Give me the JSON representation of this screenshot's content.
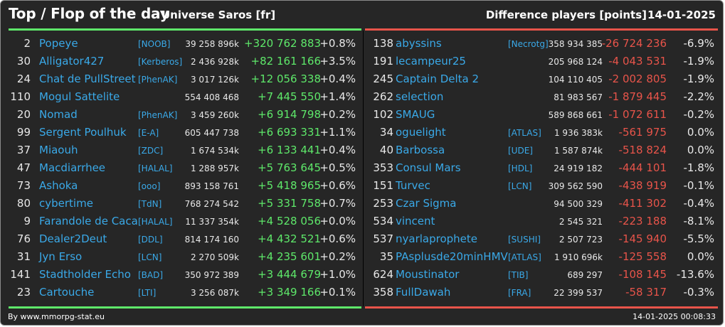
{
  "header": {
    "title": "Top / Flop of the day",
    "universe": "Universe Saros [fr]",
    "metric": "Difference players [points]",
    "date": "14-01-2025"
  },
  "colors": {
    "top": "#5ee86a",
    "flop": "#e8544a",
    "link": "#3aa9e8",
    "background": "#262626"
  },
  "top": [
    {
      "rank": "2",
      "name": "Popeye",
      "tag": "[NOOB]",
      "score": "39 258 896k",
      "diff": "+320 762 883",
      "pct": "+0.8%"
    },
    {
      "rank": "30",
      "name": "Alligator427",
      "tag": "[Kerberos]",
      "score": "2 436 928k",
      "diff": "+82 161 166",
      "pct": "+3.5%"
    },
    {
      "rank": "24",
      "name": "Chat de PullStreet",
      "tag": "[PhenAK]",
      "score": "3 017 126k",
      "diff": "+12 056 338",
      "pct": "+0.4%"
    },
    {
      "rank": "110",
      "name": "Mogul Sattelite",
      "tag": "",
      "score": "554 408 468",
      "diff": "+7 445 550",
      "pct": "+1.4%"
    },
    {
      "rank": "20",
      "name": "Nomad",
      "tag": "[PhenAK]",
      "score": "3 459 260k",
      "diff": "+6 914 798",
      "pct": "+0.2%"
    },
    {
      "rank": "99",
      "name": "Sergent Poulhuk",
      "tag": "[E-A]",
      "score": "605 447 738",
      "diff": "+6 693 331",
      "pct": "+1.1%"
    },
    {
      "rank": "37",
      "name": "Miaouh",
      "tag": "[ZDC]",
      "score": "1 674 534k",
      "diff": "+6 133 441",
      "pct": "+0.4%"
    },
    {
      "rank": "47",
      "name": "Macdiarrhee",
      "tag": "[HALAL]",
      "score": "1 288 957k",
      "diff": "+5 763 645",
      "pct": "+0.5%"
    },
    {
      "rank": "73",
      "name": "Ashoka",
      "tag": "[ooo]",
      "score": "893 158 761",
      "diff": "+5 418 965",
      "pct": "+0.6%"
    },
    {
      "rank": "80",
      "name": "cybertime",
      "tag": "[TdN]",
      "score": "768 274 542",
      "diff": "+5 331 758",
      "pct": "+0.7%"
    },
    {
      "rank": "9",
      "name": "Farandole de Caca",
      "tag": "[HALAL]",
      "score": "11 337 354k",
      "diff": "+4 528 056",
      "pct": "+0.0%"
    },
    {
      "rank": "76",
      "name": "Dealer2Deut",
      "tag": "[DDL]",
      "score": "814 174 160",
      "diff": "+4 432 521",
      "pct": "+0.6%"
    },
    {
      "rank": "31",
      "name": "Jyn Erso",
      "tag": "[LCN]",
      "score": "2 270 509k",
      "diff": "+4 235 601",
      "pct": "+0.2%"
    },
    {
      "rank": "141",
      "name": "Stadtholder Echo",
      "tag": "[BAD]",
      "score": "350 972 389",
      "diff": "+3 444 679",
      "pct": "+1.0%"
    },
    {
      "rank": "23",
      "name": "Cartouche",
      "tag": "[LTI]",
      "score": "3 256 087k",
      "diff": "+3 349 166",
      "pct": "+0.1%"
    }
  ],
  "flop": [
    {
      "rank": "138",
      "name": "abyssins",
      "tag": "[Necrotg]",
      "score": "358 934 385",
      "diff": "-26 724 236",
      "pct": "-6.9%"
    },
    {
      "rank": "191",
      "name": "lecampeur25",
      "tag": "",
      "score": "205 968 124",
      "diff": "-4 043 531",
      "pct": "-1.9%"
    },
    {
      "rank": "245",
      "name": "Captain Delta 2",
      "tag": "",
      "score": "104 110 405",
      "diff": "-2 002 805",
      "pct": "-1.9%"
    },
    {
      "rank": "262",
      "name": "selection",
      "tag": "",
      "score": "81 983 567",
      "diff": "-1 879 445",
      "pct": "-2.2%"
    },
    {
      "rank": "102",
      "name": "SMAUG",
      "tag": "",
      "score": "589 868 661",
      "diff": "-1 072 611",
      "pct": "-0.2%"
    },
    {
      "rank": "34",
      "name": "oguelight",
      "tag": "[ATLAS]",
      "score": "1 936 383k",
      "diff": "-561 975",
      "pct": "0.0%"
    },
    {
      "rank": "40",
      "name": "Barbossa",
      "tag": "[UDE]",
      "score": "1 587 874k",
      "diff": "-518 824",
      "pct": "0.0%"
    },
    {
      "rank": "353",
      "name": "Consul Mars",
      "tag": "[HDL]",
      "score": "24 919 182",
      "diff": "-444 101",
      "pct": "-1.8%"
    },
    {
      "rank": "151",
      "name": "Turvec",
      "tag": "[LCN]",
      "score": "309 562 590",
      "diff": "-438 919",
      "pct": "-0.1%"
    },
    {
      "rank": "253",
      "name": "Czar Sigma",
      "tag": "",
      "score": "94 500 329",
      "diff": "-411 302",
      "pct": "-0.4%"
    },
    {
      "rank": "534",
      "name": "vincent",
      "tag": "",
      "score": "2 545 321",
      "diff": "-223 188",
      "pct": "-8.1%"
    },
    {
      "rank": "537",
      "name": "nyarlaprophete",
      "tag": "[SUSHI]",
      "score": "2 507 723",
      "diff": "-145 940",
      "pct": "-5.5%"
    },
    {
      "rank": "35",
      "name": "PAsplusde20minHMV",
      "tag": "[ATLAS]",
      "score": "1 910 696k",
      "diff": "-125 558",
      "pct": "0.0%"
    },
    {
      "rank": "624",
      "name": "Moustinator",
      "tag": "[TIB]",
      "score": "689 297",
      "diff": "-108 145",
      "pct": "-13.6%"
    },
    {
      "rank": "358",
      "name": "FullDawah",
      "tag": "[FRA]",
      "score": "22 399 537",
      "diff": "-58 317",
      "pct": "-0.3%"
    }
  ],
  "footer": {
    "credit": "By www.mmorpg-stat.eu",
    "timestamp": "14-01-2025 00:08:33"
  }
}
